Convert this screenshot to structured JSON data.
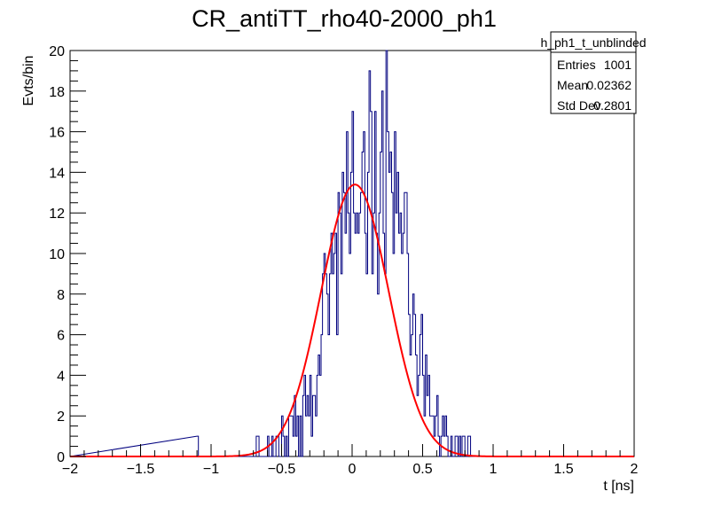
{
  "chart_data": {
    "type": "histogram",
    "title": "CR_antiTT_rho40-2000_ph1",
    "xlabel": "t [ns]",
    "ylabel": "Evts/bin",
    "xlim": [
      -2,
      2
    ],
    "ylim": [
      0,
      20
    ],
    "x_ticks": [
      -2,
      -1.5,
      -1,
      -0.5,
      0,
      0.5,
      1,
      1.5,
      2
    ],
    "x_tick_labels": [
      "−2",
      "−1.5",
      "−1",
      "−0.5",
      "0",
      "0.5",
      "1",
      "1.5",
      "2"
    ],
    "y_ticks": [
      0,
      2,
      4,
      6,
      8,
      10,
      12,
      14,
      16,
      18,
      20
    ],
    "y_tick_labels": [
      "0",
      "2",
      "4",
      "6",
      "8",
      "10",
      "12",
      "14",
      "16",
      "18",
      "20"
    ],
    "bins": {
      "min": -1.1,
      "width": 0.01
    },
    "counts": [
      1,
      0,
      0,
      0,
      0,
      0,
      0,
      0,
      0,
      0,
      0,
      0,
      0,
      0,
      0,
      0,
      0,
      0,
      0,
      0,
      0,
      0,
      0,
      0,
      0,
      0,
      0,
      0,
      0,
      0,
      0,
      0,
      0,
      0,
      0,
      0,
      0,
      0,
      0,
      0,
      0,
      0,
      1,
      1,
      0,
      0,
      0,
      0,
      0,
      0,
      1,
      0,
      0,
      1,
      0,
      0,
      1,
      1,
      0,
      0,
      2,
      1,
      0,
      1,
      0,
      2,
      2,
      2,
      1,
      3,
      1,
      2,
      0,
      2,
      0,
      3,
      4,
      2,
      3,
      2,
      4,
      1,
      3,
      3,
      2,
      4,
      5,
      4,
      6,
      9,
      10,
      9,
      8,
      6,
      9,
      11,
      9,
      10,
      11,
      6,
      13,
      12,
      9,
      14,
      13,
      11,
      16,
      12,
      10,
      14,
      17,
      12,
      11,
      12,
      11,
      12,
      13,
      15,
      16,
      11,
      9,
      14,
      19,
      17,
      9,
      12,
      17,
      11,
      8,
      12,
      15,
      18,
      11,
      9,
      20,
      16,
      14,
      15,
      13,
      10,
      16,
      12,
      14,
      11,
      12,
      10,
      11,
      13,
      13,
      10,
      7,
      5,
      6,
      8,
      7,
      5,
      3,
      4,
      6,
      7,
      4,
      2,
      5,
      3,
      4,
      2,
      2,
      2,
      1,
      2,
      3,
      1,
      0,
      1,
      2,
      1,
      2,
      1,
      0,
      0,
      1,
      0,
      0,
      1,
      1,
      0,
      1,
      0,
      1,
      1,
      0,
      0,
      1,
      1,
      0,
      0,
      0,
      0,
      0,
      0,
      0,
      0,
      0,
      0,
      0
    ],
    "series": [
      {
        "name": "h_ph1_t_unblinded",
        "kind": "histogram",
        "color": "#00007f"
      },
      {
        "name": "gaussian fit",
        "kind": "line",
        "color": "#ff0000",
        "amplitude": 13.4,
        "mean": 0.02,
        "sigma": 0.24,
        "x_range": [
          -2,
          2
        ]
      }
    ],
    "stats_box": {
      "title": "h_ph1_t_unblinded",
      "rows": [
        {
          "label": "Entries",
          "value": "1001"
        },
        {
          "label": "Mean",
          "value": "0.02362"
        },
        {
          "label": "Std Dev",
          "value": "0.2801"
        }
      ]
    }
  }
}
